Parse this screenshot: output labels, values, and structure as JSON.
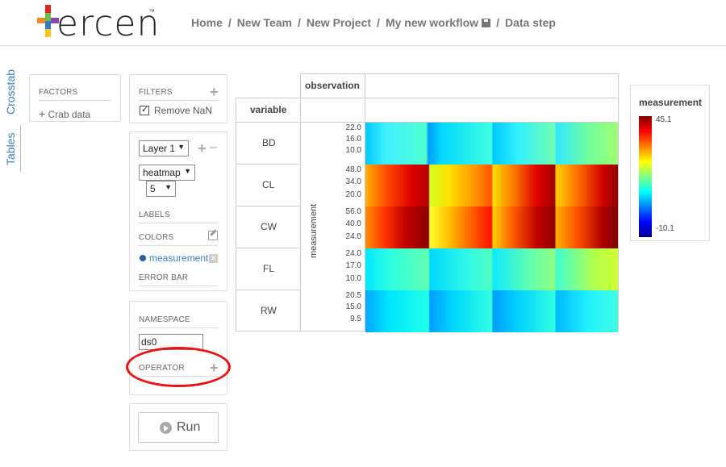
{
  "header": {
    "logo_text": "ercen",
    "logo_tm": "™",
    "breadcrumb": [
      "Home",
      "New Team",
      "New Project",
      "My new workflow",
      "Data step"
    ],
    "separator": "/"
  },
  "side_tabs": [
    "Crosstab",
    "Tables"
  ],
  "factors": {
    "label": "FACTORS",
    "add_label": "Crab data"
  },
  "filters": {
    "label": "FILTERS",
    "remove_nan_label": "Remove NaN",
    "remove_nan_checked": true
  },
  "layer": {
    "layer_select": "Layer 1",
    "chart_type_select": "heatmap",
    "count_select": "5",
    "labels_label": "LABELS",
    "colors_label": "COLORS",
    "color_factor": "measurement",
    "error_bar_label": "ERROR BAR"
  },
  "namespace": {
    "label": "NAMESPACE",
    "value": "ds0",
    "operator_label": "OPERATOR"
  },
  "run": {
    "label": "Run"
  },
  "crosstab": {
    "column_header": "observation",
    "row_header": "variable",
    "y_axis_label": "measurement",
    "rows": [
      {
        "label": "BD",
        "ticks": [
          "22.0",
          "16.0",
          "10.0"
        ]
      },
      {
        "label": "CL",
        "ticks": [
          "48.0",
          "34.0",
          "20.0"
        ]
      },
      {
        "label": "CW",
        "ticks": [
          "56.0",
          "40.0",
          "24.0"
        ]
      },
      {
        "label": "FL",
        "ticks": [
          "24.0",
          "17.0",
          "10.0"
        ]
      },
      {
        "label": "RW",
        "ticks": [
          "20.5",
          "15.0",
          "9.5"
        ]
      }
    ]
  },
  "legend": {
    "title": "measurement",
    "max": "45.1",
    "min": "-10.1"
  },
  "colors": {
    "accent_blue": "#3b7fc4",
    "highlight_red": "#e11111"
  }
}
